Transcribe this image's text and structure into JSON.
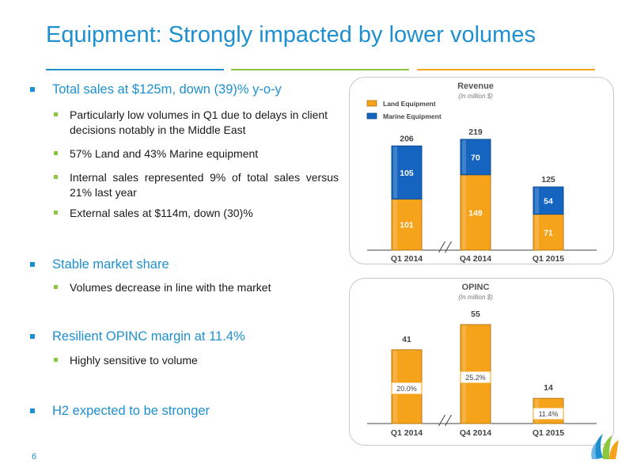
{
  "slide": {
    "title": "Equipment: Strongly impacted by lower volumes",
    "page_number": "6",
    "rule_colors": [
      "#1e8fcf",
      "#8cc63f",
      "#f5a31a"
    ]
  },
  "bullets": [
    {
      "text": "Total sales at $125m, down (39)% y-o-y",
      "subs": [
        "Particularly low volumes in Q1 due to delays in client decisions notably in the Middle East",
        "57% Land and 43% Marine equipment",
        "Internal sales represented 9% of total sales versus 21% last year",
        "External sales at $114m, down (30)%"
      ]
    },
    {
      "text": "Stable market share",
      "subs": [
        "Volumes decrease in line with the market"
      ]
    },
    {
      "text": "Resilient OPINC margin at 11.4%",
      "subs": [
        "Highly sensitive to volume"
      ]
    },
    {
      "text": "H2 expected to be stronger",
      "subs": []
    }
  ],
  "chart_data": [
    {
      "type": "bar",
      "stacked": true,
      "title": "Revenue",
      "subtitle": "(In million $)",
      "categories": [
        "Q1 2014",
        "Q4 2014",
        "Q1 2015"
      ],
      "series": [
        {
          "name": "Land Equipment",
          "values": [
            101,
            149,
            71
          ],
          "color": "#f5a31a"
        },
        {
          "name": "Marine Equipment",
          "values": [
            105,
            70,
            54
          ],
          "color": "#1565c0"
        }
      ],
      "totals": [
        206,
        219,
        125
      ],
      "ylim": [
        0,
        219
      ],
      "legend": "top-left",
      "axis_break_between": [
        0,
        1
      ],
      "grid": false
    },
    {
      "type": "bar",
      "title": "OPINC",
      "subtitle": "(In million $)",
      "categories": [
        "Q1 2014",
        "Q4 2014",
        "Q1 2015"
      ],
      "series": [
        {
          "values": [
            41,
            55,
            14
          ],
          "color": "#f5a31a"
        }
      ],
      "margins": [
        "20.0%",
        "25.2%",
        "11.4%"
      ],
      "ylim": [
        0,
        55
      ],
      "axis_break_between": [
        0,
        1
      ],
      "grid": false
    }
  ]
}
